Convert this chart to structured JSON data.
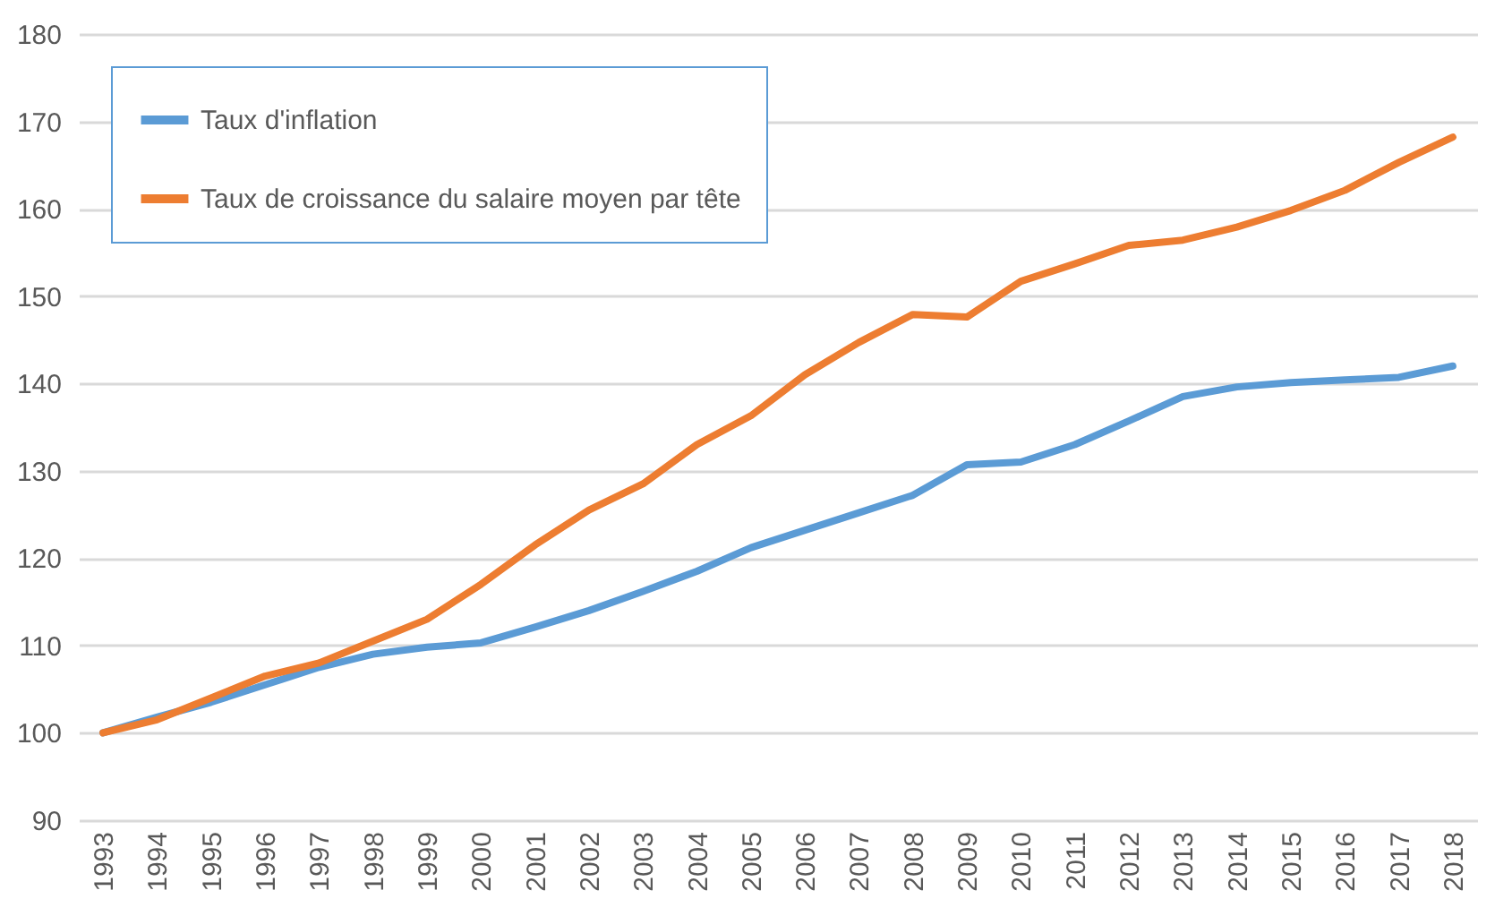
{
  "chart_data": {
    "type": "line",
    "categories": [
      "1993",
      "1994",
      "1995",
      "1996",
      "1997",
      "1998",
      "1999",
      "2000",
      "2001",
      "2002",
      "2003",
      "2004",
      "2005",
      "2006",
      "2007",
      "2008",
      "2009",
      "2010",
      "2011",
      "2012",
      "2013",
      "2014",
      "2015",
      "2016",
      "2017",
      "2018"
    ],
    "series": [
      {
        "name": "Taux d'inflation",
        "color": "#5b9bd5",
        "values": [
          100,
          101.8,
          103.5,
          105.5,
          107.5,
          109,
          109.8,
          110.3,
          112.1,
          114,
          116.2,
          118.5,
          121.2,
          123.2,
          125.2,
          127.2,
          130.7,
          131,
          133,
          135.7,
          138.5,
          139.6,
          140.1,
          140.4,
          140.7,
          142
        ]
      },
      {
        "name": "Taux de croissance du salaire moyen par tête",
        "color": "#ed7d31",
        "values": [
          100,
          101.5,
          104,
          106.5,
          108,
          110.5,
          113,
          117,
          121.5,
          125.5,
          128.5,
          133,
          136.3,
          141,
          144.7,
          147.9,
          147.6,
          151.7,
          153.7,
          155.8,
          156.4,
          157.9,
          159.8,
          162.1,
          165.3,
          168.2
        ]
      }
    ],
    "ylim": [
      90,
      180
    ],
    "yticks": [
      90,
      100,
      110,
      120,
      130,
      140,
      150,
      160,
      170,
      180
    ],
    "grid": "y",
    "legend": "top left",
    "line_style": "solid",
    "marker": "none"
  }
}
